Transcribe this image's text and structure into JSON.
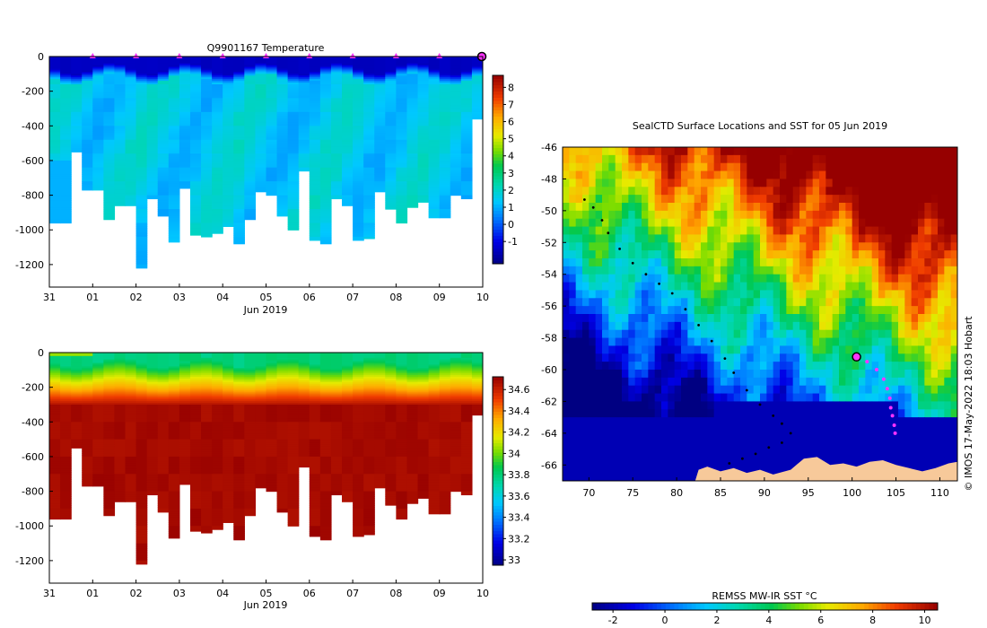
{
  "page": {
    "credit": "© IMOS 17-May-2022 18:03 Hobart"
  },
  "colors": {
    "station_marker": "#ff33ff",
    "track": "#000000",
    "land": "#f7c99a",
    "ice_shelf": "#ffffff"
  },
  "chart_data": [
    {
      "id": "temperature-section",
      "type": "heatmap",
      "title": "Q9901167  Temperature",
      "xlabel": "Jun 2019",
      "x_ticks": [
        "31",
        "01",
        "02",
        "03",
        "04",
        "05",
        "06",
        "07",
        "08",
        "09",
        "10"
      ],
      "y_ticks": [
        "0",
        "-200",
        "-400",
        "-600",
        "-800",
        "-1000",
        "-1200"
      ],
      "y_values": [
        0,
        -200,
        -400,
        -600,
        -800,
        -1000,
        -1200
      ],
      "ylim": [
        -1330,
        0
      ],
      "xlim_days": [
        0,
        10
      ],
      "colorbar_ticks": [
        "-1",
        "0",
        "1",
        "2",
        "3",
        "4",
        "5",
        "6",
        "7",
        "8"
      ],
      "colorbar_range": [
        -2.3,
        8.7
      ],
      "profile_markers_day": [
        1,
        2,
        3,
        4,
        5,
        6,
        7,
        8,
        9,
        10
      ],
      "profile_max_depth": [
        960,
        960,
        550,
        770,
        770,
        940,
        860,
        860,
        1220,
        820,
        920,
        1070,
        760,
        1030,
        1040,
        1020,
        980,
        1080,
        940,
        780,
        800,
        920,
        1000,
        660,
        1060,
        1080,
        820,
        860,
        1060,
        1050,
        780,
        880,
        960,
        870,
        840,
        930,
        930,
        800,
        820,
        360
      ]
    },
    {
      "id": "salinity-section",
      "type": "heatmap",
      "title": "",
      "xlabel": "Jun 2019",
      "x_ticks": [
        "31",
        "01",
        "02",
        "03",
        "04",
        "05",
        "06",
        "07",
        "08",
        "09",
        "10"
      ],
      "y_ticks": [
        "0",
        "-200",
        "-400",
        "-600",
        "-800",
        "-1000",
        "-1200"
      ],
      "y_values": [
        0,
        -200,
        -400,
        -600,
        -800,
        -1000,
        -1200
      ],
      "ylim": [
        -1330,
        0
      ],
      "xlim_days": [
        0,
        10
      ],
      "colorbar_ticks": [
        "33",
        "33.2",
        "33.4",
        "33.6",
        "33.8",
        "34",
        "34.2",
        "34.4",
        "34.6"
      ],
      "colorbar_range": [
        32.95,
        34.72
      ],
      "profile_max_depth": [
        960,
        960,
        550,
        770,
        770,
        940,
        860,
        860,
        1220,
        820,
        920,
        1070,
        760,
        1030,
        1040,
        1020,
        980,
        1080,
        940,
        780,
        800,
        920,
        1000,
        660,
        1060,
        1080,
        820,
        860,
        1060,
        1050,
        780,
        880,
        960,
        870,
        840,
        930,
        930,
        800,
        820,
        360
      ]
    },
    {
      "id": "sst-map",
      "type": "heatmap",
      "title": "SealCTD Surface Locations and SST for 05 Jun 2019",
      "xlim": [
        67,
        112
      ],
      "ylim": [
        -67,
        -46
      ],
      "x_ticks": [
        "70",
        "75",
        "80",
        "85",
        "90",
        "95",
        "100",
        "105",
        "110"
      ],
      "x_values": [
        70,
        75,
        80,
        85,
        90,
        95,
        100,
        105,
        110
      ],
      "y_ticks": [
        "-46",
        "-48",
        "-50",
        "-52",
        "-54",
        "-56",
        "-58",
        "-60",
        "-62",
        "-64",
        "-66"
      ],
      "y_values": [
        -46,
        -48,
        -50,
        -52,
        -54,
        -56,
        -58,
        -60,
        -62,
        -64,
        -66
      ],
      "colorbar_label": "REMSS MW-IR SST °C",
      "colorbar_ticks": [
        "-2",
        "0",
        "2",
        "4",
        "6",
        "8",
        "10"
      ],
      "colorbar_values": [
        -2,
        0,
        2,
        4,
        6,
        8,
        10
      ],
      "colorbar_range": [
        -2.8,
        10.5
      ],
      "track": [
        [
          69.5,
          -49.3
        ],
        [
          70.5,
          -49.8
        ],
        [
          71.5,
          -50.6
        ],
        [
          72.2,
          -51.4
        ],
        [
          73.5,
          -52.4
        ],
        [
          75.0,
          -53.3
        ],
        [
          76.5,
          -54.0
        ],
        [
          78.0,
          -54.6
        ],
        [
          79.5,
          -55.2
        ],
        [
          81.0,
          -56.2
        ],
        [
          82.5,
          -57.2
        ],
        [
          84.0,
          -58.2
        ],
        [
          85.5,
          -59.3
        ],
        [
          86.5,
          -60.2
        ],
        [
          88.0,
          -61.3
        ],
        [
          89.5,
          -62.2
        ],
        [
          91.0,
          -62.9
        ],
        [
          92.0,
          -63.4
        ],
        [
          93.0,
          -64.0
        ],
        [
          92.0,
          -64.6
        ],
        [
          90.5,
          -64.9
        ],
        [
          89.0,
          -65.3
        ],
        [
          87.5,
          -65.6
        ],
        [
          86.0,
          -65.9
        ]
      ],
      "current_position": [
        100.5,
        -59.2
      ],
      "recent_positions": [
        [
          100.5,
          -59.2
        ],
        [
          101.7,
          -59.5
        ],
        [
          102.8,
          -60.0
        ],
        [
          103.6,
          -60.6
        ],
        [
          104.0,
          -61.2
        ],
        [
          104.3,
          -61.8
        ],
        [
          104.4,
          -62.4
        ],
        [
          104.6,
          -62.9
        ],
        [
          104.8,
          -63.5
        ],
        [
          104.9,
          -64.0
        ]
      ]
    }
  ]
}
